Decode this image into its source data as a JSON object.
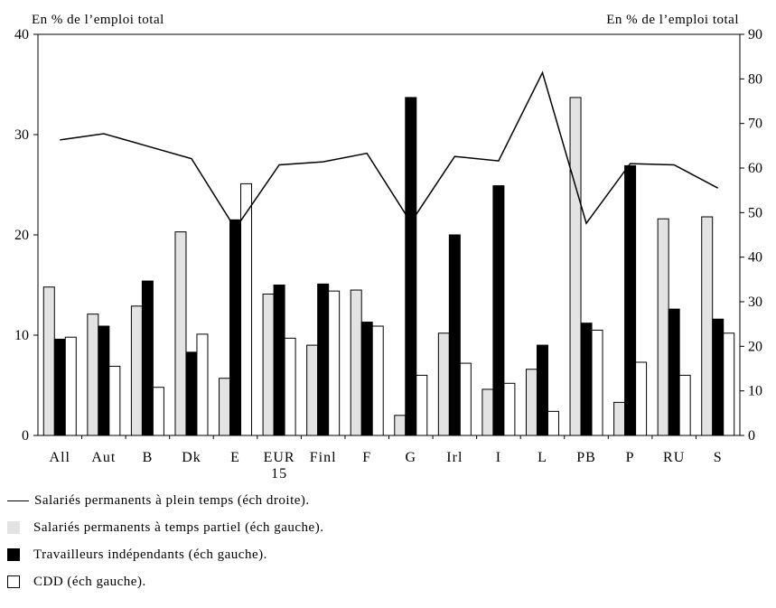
{
  "chart_data": {
    "type": "bar",
    "left_axis_label": "En %  de l’emploi total",
    "right_axis_label": "En %  de l’emploi total",
    "left_ylim": [
      0,
      40
    ],
    "right_ylim": [
      0,
      90
    ],
    "left_ticks": [
      "0",
      "10",
      "20",
      "30",
      "40"
    ],
    "right_ticks": [
      "0",
      "10",
      "20",
      "30",
      "40",
      "50",
      "60",
      "70",
      "80",
      "90"
    ],
    "categories": [
      "All",
      "Aut",
      "B",
      "Dk",
      "E",
      "EUR\n15",
      "Finl",
      "F",
      "G",
      "Irl",
      "I",
      "L",
      "PB",
      "P",
      "RU",
      "S"
    ],
    "series": [
      {
        "name": "Salariés permanents à temps partiel (éch gauche).",
        "kind": "bar",
        "axis": "left",
        "fill": "#e3e3e3",
        "values": [
          14.8,
          12.1,
          12.9,
          20.3,
          5.7,
          14.1,
          9.0,
          14.5,
          2.0,
          10.2,
          4.6,
          6.6,
          33.7,
          3.3,
          21.6,
          21.8
        ]
      },
      {
        "name": "Travailleurs indépendants (éch gauche).",
        "kind": "bar",
        "axis": "left",
        "fill": "#000000",
        "values": [
          9.6,
          10.9,
          15.4,
          8.3,
          21.5,
          15.0,
          15.1,
          11.3,
          33.7,
          20.0,
          24.9,
          9.0,
          11.2,
          26.9,
          12.6,
          11.6
        ]
      },
      {
        "name": "CDD (éch gauche).",
        "kind": "bar",
        "axis": "left",
        "fill": "#ffffff",
        "values": [
          9.8,
          6.9,
          4.8,
          10.1,
          25.1,
          9.7,
          14.4,
          10.9,
          6.0,
          7.2,
          5.2,
          2.4,
          10.5,
          7.3,
          6.0,
          10.2
        ]
      },
      {
        "name": "Salariés permanents à plein temps (éch droite).",
        "kind": "line",
        "axis": "right",
        "color": "#000000",
        "values": [
          66.3,
          67.7,
          64.9,
          62.1,
          46.4,
          60.7,
          61.4,
          63.3,
          47.8,
          62.6,
          61.6,
          81.4,
          47.6,
          61.0,
          60.7,
          55.5
        ]
      }
    ]
  },
  "legend": {
    "line": "Salariés permanents à plein temps (éch droite).",
    "grey": "Salariés permanents à temps partiel (éch gauche).",
    "black": "Travailleurs indépendants (éch gauche).",
    "white": "CDD (éch gauche)."
  }
}
